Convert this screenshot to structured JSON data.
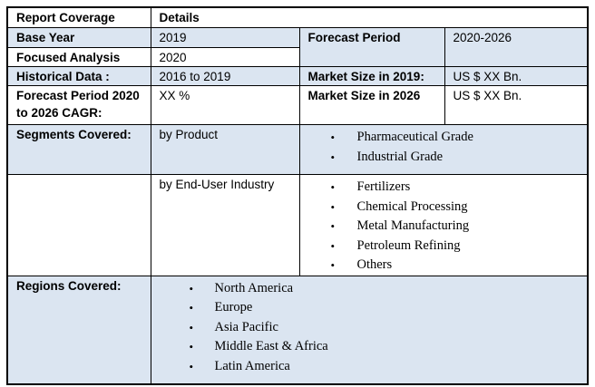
{
  "colors": {
    "band_fill": "#dbe5f1",
    "border": "#000000",
    "background": "#ffffff",
    "text": "#000000"
  },
  "bullet_icon": "•",
  "table": {
    "header": {
      "label": "Report Coverage",
      "details": "Details"
    },
    "rows": {
      "base_year": {
        "label": "Base Year",
        "value": "2019"
      },
      "forecast_period": {
        "label": "Forecast Period",
        "value": "2020-2026"
      },
      "focused_analysis": {
        "label": "Focused Analysis",
        "value": "2020"
      },
      "historical_data": {
        "label": "Historical Data :",
        "value": "2016 to 2019"
      },
      "market_size_2019": {
        "label": "Market Size in 2019:",
        "value": "US $ XX Bn."
      },
      "cagr": {
        "label": "Forecast Period 2020 to 2026 CAGR:",
        "value": "XX %"
      },
      "market_size_2026": {
        "label": "Market Size in 2026",
        "value": "US $ XX Bn."
      },
      "segments": {
        "label": "Segments Covered:",
        "groups": [
          {
            "name": "by Product",
            "items": [
              "Pharmaceutical Grade",
              "Industrial Grade"
            ]
          },
          {
            "name": "by End-User Industry",
            "items": [
              "Fertilizers",
              "Chemical Processing",
              "Metal Manufacturing",
              "Petroleum Refining",
              "Others"
            ]
          }
        ]
      },
      "regions": {
        "label": "Regions Covered:",
        "items": [
          "North America",
          "Europe",
          "Asia Pacific",
          "Middle East & Africa",
          "Latin America"
        ]
      }
    }
  }
}
